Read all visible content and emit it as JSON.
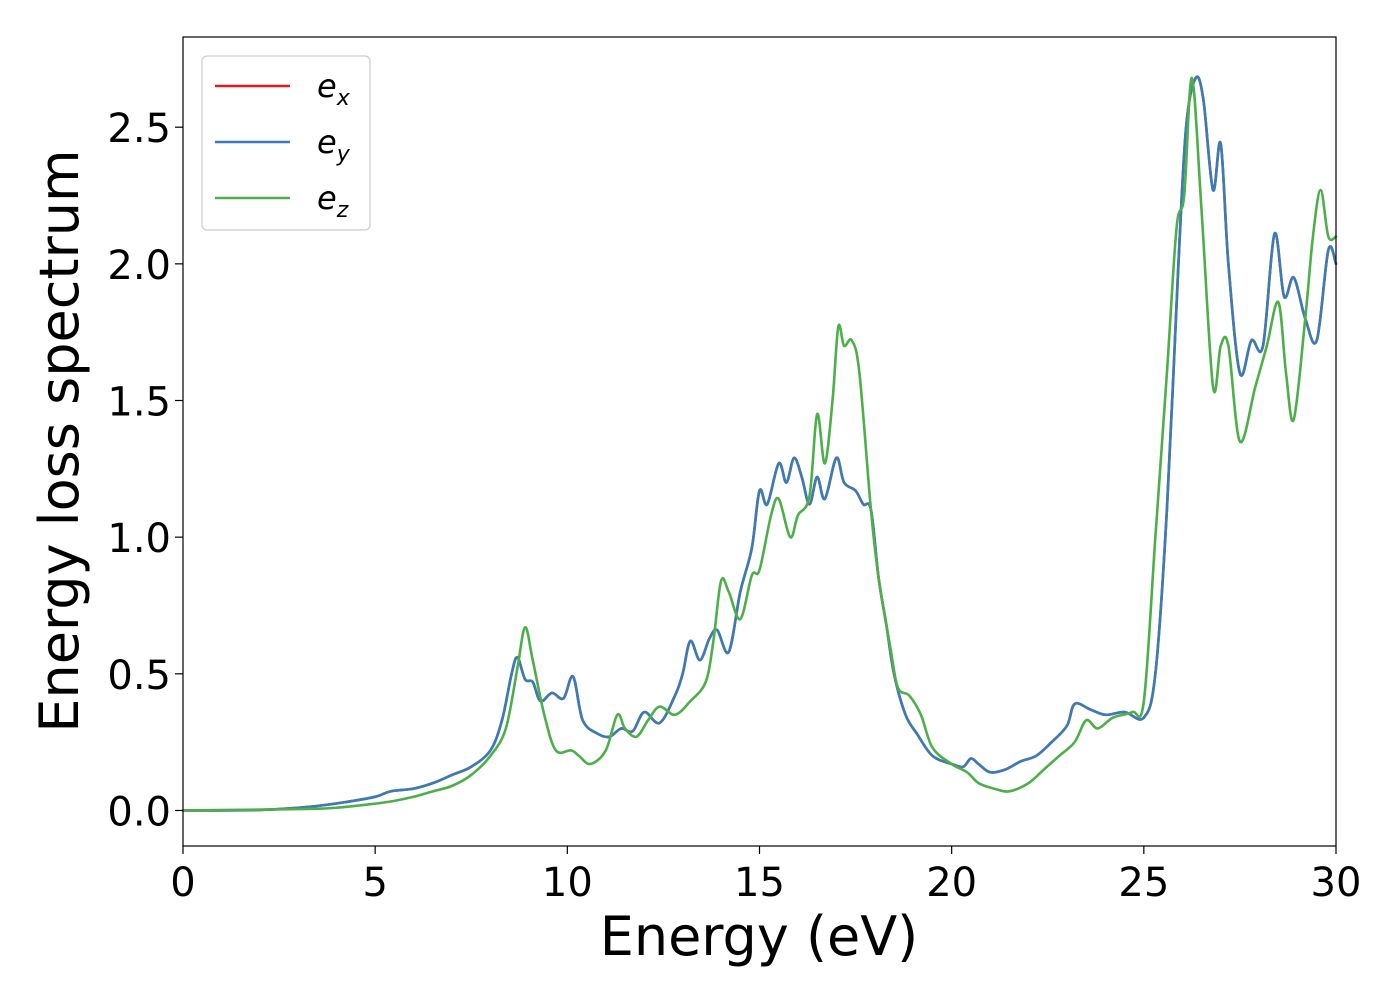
{
  "chart_data": {
    "type": "line",
    "title": "",
    "xlabel": "Energy (eV)",
    "ylabel": "Energy loss spectrum",
    "xlim": [
      0,
      30
    ],
    "ylim": [
      -0.13,
      2.83
    ],
    "xticks": [
      0,
      5,
      10,
      15,
      20,
      25,
      30
    ],
    "xtick_labels": [
      "0",
      "5",
      "10",
      "15",
      "20",
      "25",
      "30"
    ],
    "yticks": [
      0.0,
      0.5,
      1.0,
      1.5,
      2.0,
      2.5
    ],
    "ytick_labels": [
      "0.0",
      "0.5",
      "1.0",
      "1.5",
      "2.0",
      "2.5"
    ],
    "grid": false,
    "legend_position": "top-left",
    "series": [
      {
        "name": "e_x",
        "legend_base": "e",
        "legend_sub": "x",
        "color": "#e41a1c",
        "points": [
          [
            0,
            0
          ],
          [
            2,
            0.002
          ],
          [
            3,
            0.01
          ],
          [
            3.7,
            0.02
          ],
          [
            4.2,
            0.03
          ],
          [
            5,
            0.05
          ],
          [
            5.4,
            0.07
          ],
          [
            6,
            0.08
          ],
          [
            6.5,
            0.1
          ],
          [
            7,
            0.13
          ],
          [
            7.5,
            0.16
          ],
          [
            8,
            0.22
          ],
          [
            8.3,
            0.33
          ],
          [
            8.55,
            0.5
          ],
          [
            8.7,
            0.56
          ],
          [
            8.9,
            0.48
          ],
          [
            9.1,
            0.47
          ],
          [
            9.3,
            0.4
          ],
          [
            9.6,
            0.43
          ],
          [
            9.9,
            0.41
          ],
          [
            10.15,
            0.49
          ],
          [
            10.4,
            0.33
          ],
          [
            10.8,
            0.28
          ],
          [
            11.1,
            0.27
          ],
          [
            11.4,
            0.3
          ],
          [
            11.7,
            0.29
          ],
          [
            12.0,
            0.36
          ],
          [
            12.4,
            0.32
          ],
          [
            12.8,
            0.42
          ],
          [
            13.0,
            0.5
          ],
          [
            13.2,
            0.62
          ],
          [
            13.45,
            0.55
          ],
          [
            13.7,
            0.63
          ],
          [
            13.9,
            0.66
          ],
          [
            14.2,
            0.58
          ],
          [
            14.5,
            0.8
          ],
          [
            14.8,
            0.96
          ],
          [
            15.0,
            1.17
          ],
          [
            15.2,
            1.12
          ],
          [
            15.5,
            1.27
          ],
          [
            15.7,
            1.2
          ],
          [
            15.9,
            1.29
          ],
          [
            16.1,
            1.22
          ],
          [
            16.3,
            1.12
          ],
          [
            16.5,
            1.22
          ],
          [
            16.7,
            1.14
          ],
          [
            17.0,
            1.29
          ],
          [
            17.2,
            1.2
          ],
          [
            17.5,
            1.17
          ],
          [
            17.7,
            1.12
          ],
          [
            17.9,
            1.1
          ],
          [
            18.1,
            0.85
          ],
          [
            18.3,
            0.68
          ],
          [
            18.5,
            0.5
          ],
          [
            18.8,
            0.35
          ],
          [
            19.1,
            0.28
          ],
          [
            19.5,
            0.2
          ],
          [
            20.0,
            0.17
          ],
          [
            20.3,
            0.16
          ],
          [
            20.5,
            0.19
          ],
          [
            20.7,
            0.17
          ],
          [
            21.0,
            0.14
          ],
          [
            21.4,
            0.15
          ],
          [
            21.8,
            0.18
          ],
          [
            22.2,
            0.2
          ],
          [
            22.6,
            0.25
          ],
          [
            23.0,
            0.31
          ],
          [
            23.2,
            0.39
          ],
          [
            23.6,
            0.37
          ],
          [
            24.0,
            0.35
          ],
          [
            24.5,
            0.36
          ],
          [
            25.0,
            0.34
          ],
          [
            25.3,
            0.5
          ],
          [
            25.6,
            1.1
          ],
          [
            25.9,
            2.0
          ],
          [
            26.1,
            2.5
          ],
          [
            26.35,
            2.68
          ],
          [
            26.55,
            2.6
          ],
          [
            26.8,
            2.27
          ],
          [
            27.0,
            2.44
          ],
          [
            27.2,
            2.0
          ],
          [
            27.5,
            1.6
          ],
          [
            27.8,
            1.72
          ],
          [
            28.1,
            1.7
          ],
          [
            28.4,
            2.11
          ],
          [
            28.65,
            1.88
          ],
          [
            28.9,
            1.95
          ],
          [
            29.2,
            1.8
          ],
          [
            29.5,
            1.72
          ],
          [
            29.8,
            2.05
          ],
          [
            30.0,
            2.0
          ]
        ]
      },
      {
        "name": "e_y",
        "legend_base": "e",
        "legend_sub": "y",
        "color": "#377eb8",
        "points": [
          [
            0,
            0
          ],
          [
            2,
            0.002
          ],
          [
            3,
            0.01
          ],
          [
            3.7,
            0.02
          ],
          [
            4.2,
            0.03
          ],
          [
            5,
            0.05
          ],
          [
            5.4,
            0.07
          ],
          [
            6,
            0.08
          ],
          [
            6.5,
            0.1
          ],
          [
            7,
            0.13
          ],
          [
            7.5,
            0.16
          ],
          [
            8,
            0.22
          ],
          [
            8.3,
            0.33
          ],
          [
            8.55,
            0.5
          ],
          [
            8.7,
            0.56
          ],
          [
            8.9,
            0.48
          ],
          [
            9.1,
            0.47
          ],
          [
            9.3,
            0.4
          ],
          [
            9.6,
            0.43
          ],
          [
            9.9,
            0.41
          ],
          [
            10.15,
            0.49
          ],
          [
            10.4,
            0.33
          ],
          [
            10.8,
            0.28
          ],
          [
            11.1,
            0.27
          ],
          [
            11.4,
            0.3
          ],
          [
            11.7,
            0.29
          ],
          [
            12.0,
            0.36
          ],
          [
            12.4,
            0.32
          ],
          [
            12.8,
            0.42
          ],
          [
            13.0,
            0.5
          ],
          [
            13.2,
            0.62
          ],
          [
            13.45,
            0.55
          ],
          [
            13.7,
            0.63
          ],
          [
            13.9,
            0.66
          ],
          [
            14.2,
            0.58
          ],
          [
            14.5,
            0.8
          ],
          [
            14.8,
            0.96
          ],
          [
            15.0,
            1.17
          ],
          [
            15.2,
            1.12
          ],
          [
            15.5,
            1.27
          ],
          [
            15.7,
            1.2
          ],
          [
            15.9,
            1.29
          ],
          [
            16.1,
            1.22
          ],
          [
            16.3,
            1.12
          ],
          [
            16.5,
            1.22
          ],
          [
            16.7,
            1.14
          ],
          [
            17.0,
            1.29
          ],
          [
            17.2,
            1.2
          ],
          [
            17.5,
            1.17
          ],
          [
            17.7,
            1.12
          ],
          [
            17.9,
            1.1
          ],
          [
            18.1,
            0.85
          ],
          [
            18.3,
            0.68
          ],
          [
            18.5,
            0.5
          ],
          [
            18.8,
            0.35
          ],
          [
            19.1,
            0.28
          ],
          [
            19.5,
            0.2
          ],
          [
            20.0,
            0.17
          ],
          [
            20.3,
            0.16
          ],
          [
            20.5,
            0.19
          ],
          [
            20.7,
            0.17
          ],
          [
            21.0,
            0.14
          ],
          [
            21.4,
            0.15
          ],
          [
            21.8,
            0.18
          ],
          [
            22.2,
            0.2
          ],
          [
            22.6,
            0.25
          ],
          [
            23.0,
            0.31
          ],
          [
            23.2,
            0.39
          ],
          [
            23.6,
            0.37
          ],
          [
            24.0,
            0.35
          ],
          [
            24.5,
            0.36
          ],
          [
            25.0,
            0.34
          ],
          [
            25.3,
            0.5
          ],
          [
            25.6,
            1.1
          ],
          [
            25.9,
            2.0
          ],
          [
            26.1,
            2.5
          ],
          [
            26.35,
            2.68
          ],
          [
            26.55,
            2.6
          ],
          [
            26.8,
            2.27
          ],
          [
            27.0,
            2.44
          ],
          [
            27.2,
            2.0
          ],
          [
            27.5,
            1.6
          ],
          [
            27.8,
            1.72
          ],
          [
            28.1,
            1.7
          ],
          [
            28.4,
            2.11
          ],
          [
            28.65,
            1.88
          ],
          [
            28.9,
            1.95
          ],
          [
            29.2,
            1.8
          ],
          [
            29.5,
            1.72
          ],
          [
            29.8,
            2.05
          ],
          [
            30.0,
            2.0
          ]
        ]
      },
      {
        "name": "e_z",
        "legend_base": "e",
        "legend_sub": "z",
        "color": "#4daf4a",
        "points": [
          [
            0,
            0
          ],
          [
            3,
            0.005
          ],
          [
            4,
            0.01
          ],
          [
            5,
            0.025
          ],
          [
            5.5,
            0.035
          ],
          [
            6,
            0.05
          ],
          [
            6.5,
            0.07
          ],
          [
            7,
            0.09
          ],
          [
            7.5,
            0.13
          ],
          [
            8,
            0.2
          ],
          [
            8.4,
            0.3
          ],
          [
            8.7,
            0.52
          ],
          [
            8.9,
            0.67
          ],
          [
            9.1,
            0.55
          ],
          [
            9.4,
            0.35
          ],
          [
            9.7,
            0.22
          ],
          [
            10.1,
            0.22
          ],
          [
            10.3,
            0.2
          ],
          [
            10.6,
            0.17
          ],
          [
            11.0,
            0.22
          ],
          [
            11.3,
            0.35
          ],
          [
            11.5,
            0.3
          ],
          [
            11.8,
            0.27
          ],
          [
            12.1,
            0.33
          ],
          [
            12.4,
            0.38
          ],
          [
            12.8,
            0.35
          ],
          [
            13.2,
            0.4
          ],
          [
            13.6,
            0.47
          ],
          [
            13.8,
            0.62
          ],
          [
            14.0,
            0.84
          ],
          [
            14.2,
            0.8
          ],
          [
            14.5,
            0.7
          ],
          [
            14.8,
            0.86
          ],
          [
            15.0,
            0.88
          ],
          [
            15.3,
            1.08
          ],
          [
            15.5,
            1.14
          ],
          [
            15.8,
            1.0
          ],
          [
            16.0,
            1.08
          ],
          [
            16.3,
            1.15
          ],
          [
            16.5,
            1.45
          ],
          [
            16.7,
            1.27
          ],
          [
            16.9,
            1.5
          ],
          [
            17.05,
            1.77
          ],
          [
            17.2,
            1.7
          ],
          [
            17.4,
            1.72
          ],
          [
            17.6,
            1.6
          ],
          [
            17.9,
            1.1
          ],
          [
            18.1,
            0.85
          ],
          [
            18.4,
            0.6
          ],
          [
            18.6,
            0.45
          ],
          [
            18.9,
            0.42
          ],
          [
            19.2,
            0.35
          ],
          [
            19.5,
            0.23
          ],
          [
            20.0,
            0.17
          ],
          [
            20.4,
            0.14
          ],
          [
            20.7,
            0.1
          ],
          [
            21.1,
            0.08
          ],
          [
            21.5,
            0.07
          ],
          [
            22.0,
            0.1
          ],
          [
            22.4,
            0.15
          ],
          [
            22.8,
            0.2
          ],
          [
            23.2,
            0.25
          ],
          [
            23.5,
            0.33
          ],
          [
            23.8,
            0.3
          ],
          [
            24.2,
            0.34
          ],
          [
            24.7,
            0.36
          ],
          [
            25.0,
            0.4
          ],
          [
            25.3,
            1.0
          ],
          [
            25.6,
            1.6
          ],
          [
            25.85,
            2.13
          ],
          [
            26.05,
            2.25
          ],
          [
            26.25,
            2.68
          ],
          [
            26.5,
            2.2
          ],
          [
            26.8,
            1.55
          ],
          [
            27.0,
            1.7
          ],
          [
            27.2,
            1.7
          ],
          [
            27.5,
            1.35
          ],
          [
            27.9,
            1.55
          ],
          [
            28.2,
            1.7
          ],
          [
            28.5,
            1.86
          ],
          [
            28.7,
            1.6
          ],
          [
            28.9,
            1.43
          ],
          [
            29.2,
            1.8
          ],
          [
            29.4,
            2.1
          ],
          [
            29.6,
            2.27
          ],
          [
            29.8,
            2.1
          ],
          [
            30.0,
            2.1
          ]
        ]
      }
    ]
  }
}
